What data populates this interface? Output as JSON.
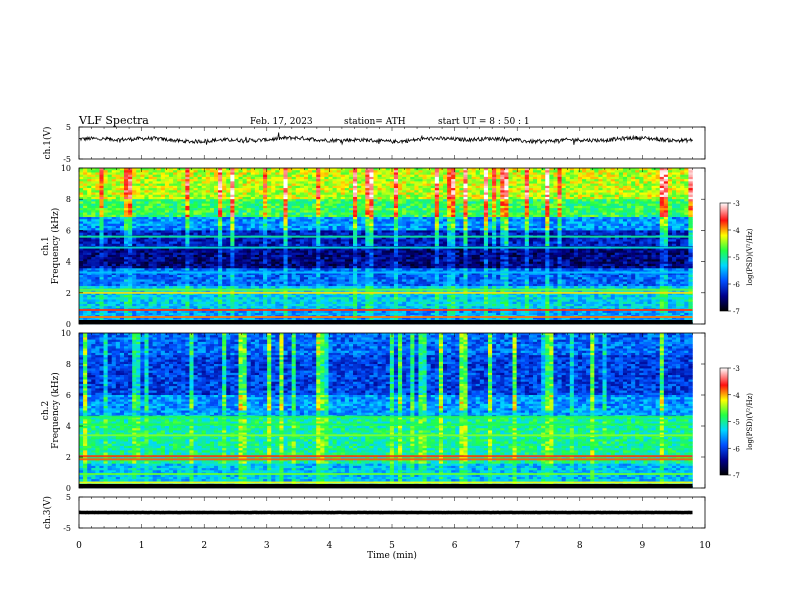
{
  "header": {
    "title": "VLF Spectra",
    "date": "Feb. 17, 2023",
    "station": "station= ATH",
    "start": "start UT =   8 : 50 : 1"
  },
  "chart_data": [
    {
      "type": "line",
      "name": "ch1-waveform",
      "ylabel": "ch.1(V)",
      "ylim": [
        -5,
        5
      ],
      "ytick_labels": [
        "5",
        "-5"
      ],
      "xlim": [
        0,
        10
      ],
      "mean_level": 1.0,
      "noise_amplitude": 0.6
    },
    {
      "type": "heatmap",
      "name": "ch1-spectrogram",
      "ylabel": "ch.1 Frequency (kHz)",
      "ylim": [
        0,
        10
      ],
      "ytick_labels": [
        "0",
        "2",
        "4",
        "6",
        "8",
        "10"
      ],
      "xlim": [
        0,
        9.8
      ],
      "colorbar": {
        "label": "log(PSD)(V²/Hz)",
        "range": [
          -7,
          -3
        ],
        "tick_labels": [
          "-3",
          "-4",
          "-5",
          "-6",
          "-7"
        ]
      }
    },
    {
      "type": "heatmap",
      "name": "ch2-spectrogram",
      "ylabel": "ch.2 Frequency (kHz)",
      "ylim": [
        0,
        10
      ],
      "ytick_labels": [
        "0",
        "2",
        "4",
        "6",
        "8",
        "10"
      ],
      "xlim": [
        0,
        9.8
      ],
      "colorbar": {
        "label": "log(PSD)(V²/Hz)",
        "range": [
          -7,
          -3
        ],
        "tick_labels": [
          "-3",
          "-4",
          "-5",
          "-6",
          "-7"
        ]
      }
    },
    {
      "type": "line",
      "name": "ch3-waveform",
      "ylabel": "ch.3(V)",
      "ylim": [
        -5,
        5
      ],
      "ytick_labels": [
        "5",
        "-5"
      ],
      "xlim": [
        0,
        10
      ],
      "mean_level": 0.0,
      "noise_amplitude": 0.05
    }
  ],
  "xaxis": {
    "label": "Time (min)",
    "range": [
      0,
      10
    ],
    "tick_labels": [
      "0",
      "1",
      "2",
      "3",
      "4",
      "5",
      "6",
      "7",
      "8",
      "9",
      "10"
    ]
  },
  "colors": {
    "low": "#000033",
    "mid": "#00c8ff",
    "high": "#ffff00",
    "peak": "#ff0000"
  }
}
